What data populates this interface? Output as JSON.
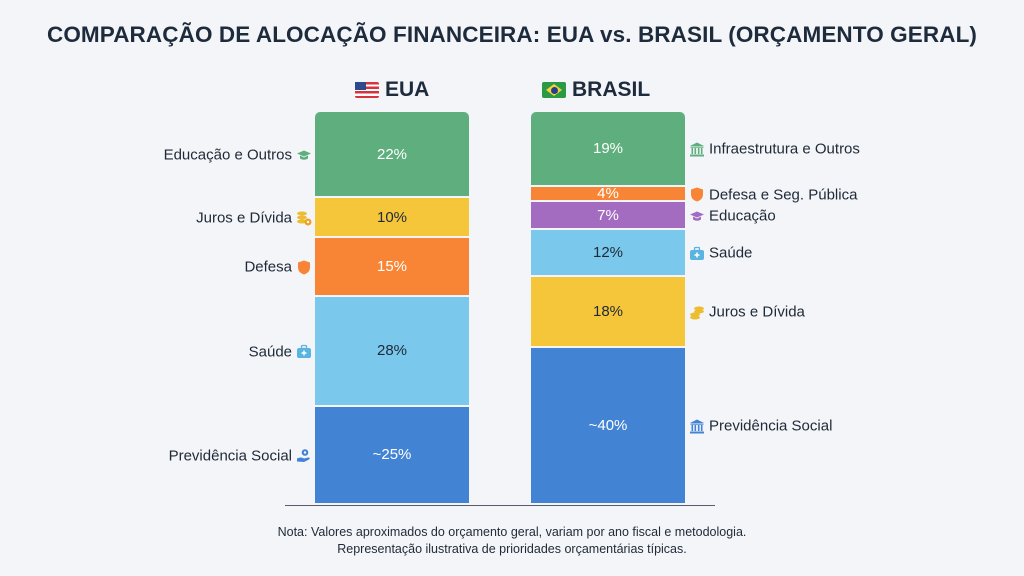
{
  "chart_data": {
    "type": "bar",
    "stacked": true,
    "title": "COMPARAÇÃO DE ALOCAÇÃO FINANCEIRA: EUA vs. BRASIL (ORÇAMENTO GERAL)",
    "ylim": [
      0,
      100
    ],
    "bars": [
      {
        "name": "EUA",
        "label_side": "left",
        "segments_top_to_bottom": [
          {
            "label": "Educação e Outros",
            "value": 22,
            "text": "22%",
            "color": "#5fae7e",
            "text_color": "#ffffff",
            "icon": "graduation-cap-icon"
          },
          {
            "label": "Juros e Dívida",
            "value": 10,
            "text": "10%",
            "color": "#f5c63a",
            "text_color": "#1f2937",
            "icon": "coins-gear-icon"
          },
          {
            "label": "Defesa",
            "value": 15,
            "text": "15%",
            "color": "#f78535",
            "text_color": "#ffffff",
            "icon": "shield-icon"
          },
          {
            "label": "Saúde",
            "value": 28,
            "text": "28%",
            "color": "#7ac8eb",
            "text_color": "#1f2937",
            "icon": "medical-kit-icon"
          },
          {
            "label": "Previdência Social",
            "value": 25,
            "text": "~25%",
            "color": "#4383d3",
            "text_color": "#ffffff",
            "icon": "hand-gear-icon"
          }
        ]
      },
      {
        "name": "BRASIL",
        "label_side": "right",
        "segments_top_to_bottom": [
          {
            "label": "Infraestrutura e Outros",
            "value": 19,
            "text": "19%",
            "color": "#5fae7e",
            "text_color": "#ffffff",
            "icon": "bank-building-icon"
          },
          {
            "label": "Defesa e Seg. Pública",
            "value": 4,
            "text": "4%",
            "color": "#f78535",
            "text_color": "#ffffff",
            "icon": "shield-icon"
          },
          {
            "label": "Educação",
            "value": 7,
            "text": "7%",
            "color": "#a36cc0",
            "text_color": "#ffffff",
            "icon": "graduation-cap-icon"
          },
          {
            "label": "Saúde",
            "value": 12,
            "text": "12%",
            "color": "#7ac8eb",
            "text_color": "#1f2937",
            "icon": "medical-kit-icon"
          },
          {
            "label": "Juros e Dívida",
            "value": 18,
            "text": "18%",
            "color": "#f5c63a",
            "text_color": "#1f2937",
            "icon": "coins-icon"
          },
          {
            "label": "Previdência Social",
            "value": 40,
            "text": "~40%",
            "color": "#4383d3",
            "text_color": "#ffffff",
            "icon": "bank-building-icon"
          }
        ]
      }
    ],
    "note": [
      "Nota: Valores aproximados do orçamento geral, variam por ano fiscal e metodologia.",
      "Representação ilustrativa de prioridades orçamentárias típicas."
    ]
  }
}
